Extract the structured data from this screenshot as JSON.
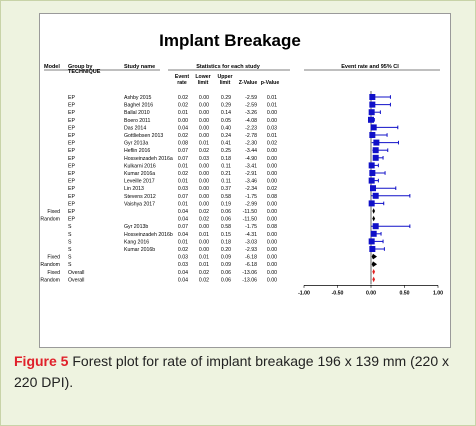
{
  "caption": {
    "figure_label": "Figure 5",
    "text": "Forest plot for rate of implant breakage 196 x 139 mm (220 x 220 DPI)."
  },
  "colors": {
    "study_marker": "#1010c8",
    "pooled_marker": "#000000",
    "overall_marker": "#e02020"
  },
  "chart_data": {
    "type": "forest",
    "title": "Implant Breakage",
    "headers": {
      "model": "Model",
      "group_by": "Group by",
      "group_by_sub": "TECHNIQUE",
      "study_name": "Study name",
      "stats_for_each_study": "Statistics for each study",
      "event_rate": [
        "Event",
        "rate"
      ],
      "lower_limit": [
        "Lower",
        "limit"
      ],
      "upper_limit": [
        "Upper",
        "limit"
      ],
      "z_value": "Z-Value",
      "p_value": "p-Value",
      "plot": "Event rate and 95% CI"
    },
    "x_ticks": [
      "-1.00",
      "-0.50",
      "0.00",
      "0.50",
      "1.00"
    ],
    "x_tick_values": [
      -1,
      -0.5,
      0,
      0.5,
      1
    ],
    "xlim": [
      -1,
      1
    ],
    "rows": [
      {
        "model": "",
        "group": "EP",
        "study": "Ashby 2015",
        "rate": "0.02",
        "lower": "0.00",
        "upper": "0.29",
        "z": "-2.59",
        "p": "0.01",
        "kind": "study",
        "r": 0.02,
        "lo": 0.0,
        "hi": 0.29
      },
      {
        "model": "",
        "group": "EP",
        "study": "Baghel 2016",
        "rate": "0.02",
        "lower": "0.00",
        "upper": "0.29",
        "z": "-2.59",
        "p": "0.01",
        "kind": "study",
        "r": 0.02,
        "lo": 0.0,
        "hi": 0.29
      },
      {
        "model": "",
        "group": "EP",
        "study": "Ballal 2010",
        "rate": "0.01",
        "lower": "0.00",
        "upper": "0.14",
        "z": "-3.26",
        "p": "0.00",
        "kind": "study",
        "r": 0.01,
        "lo": 0.0,
        "hi": 0.14
      },
      {
        "model": "",
        "group": "EP",
        "study": "Boero 2011",
        "rate": "0.00",
        "lower": "0.00",
        "upper": "0.05",
        "z": "-4.08",
        "p": "0.00",
        "kind": "study",
        "r": 0.0,
        "lo": 0.0,
        "hi": 0.05
      },
      {
        "model": "",
        "group": "EP",
        "study": "Das 2014",
        "rate": "0.04",
        "lower": "0.00",
        "upper": "0.40",
        "z": "-2.23",
        "p": "0.03",
        "kind": "study",
        "r": 0.04,
        "lo": 0.0,
        "hi": 0.4
      },
      {
        "model": "",
        "group": "EP",
        "study": "Gottliebsen 2013",
        "rate": "0.02",
        "lower": "0.00",
        "upper": "0.24",
        "z": "-2.78",
        "p": "0.01",
        "kind": "study",
        "r": 0.02,
        "lo": 0.0,
        "hi": 0.24
      },
      {
        "model": "",
        "group": "EP",
        "study": "Gyr 2013a",
        "rate": "0.08",
        "lower": "0.01",
        "upper": "0.41",
        "z": "-2.30",
        "p": "0.02",
        "kind": "study",
        "r": 0.08,
        "lo": 0.01,
        "hi": 0.41
      },
      {
        "model": "",
        "group": "EP",
        "study": "Heflin 2016",
        "rate": "0.07",
        "lower": "0.02",
        "upper": "0.25",
        "z": "-3.44",
        "p": "0.00",
        "kind": "study",
        "r": 0.07,
        "lo": 0.02,
        "hi": 0.25
      },
      {
        "model": "",
        "group": "EP",
        "study": "Hosseinzadeh 2016a",
        "rate": "0.07",
        "lower": "0.03",
        "upper": "0.18",
        "z": "-4.90",
        "p": "0.00",
        "kind": "study",
        "r": 0.07,
        "lo": 0.03,
        "hi": 0.18
      },
      {
        "model": "",
        "group": "EP",
        "study": "Kulkarni 2016",
        "rate": "0.01",
        "lower": "0.00",
        "upper": "0.11",
        "z": "-3.41",
        "p": "0.00",
        "kind": "study",
        "r": 0.01,
        "lo": 0.0,
        "hi": 0.11
      },
      {
        "model": "",
        "group": "EP",
        "study": "Kumar 2016a",
        "rate": "0.02",
        "lower": "0.00",
        "upper": "0.21",
        "z": "-2.91",
        "p": "0.00",
        "kind": "study",
        "r": 0.02,
        "lo": 0.0,
        "hi": 0.21
      },
      {
        "model": "",
        "group": "EP",
        "study": "Leveille 2017",
        "rate": "0.01",
        "lower": "0.00",
        "upper": "0.11",
        "z": "-3.46",
        "p": "0.00",
        "kind": "study",
        "r": 0.01,
        "lo": 0.0,
        "hi": 0.11
      },
      {
        "model": "",
        "group": "EP",
        "study": "Lin 2013",
        "rate": "0.03",
        "lower": "0.00",
        "upper": "0.37",
        "z": "-2.34",
        "p": "0.02",
        "kind": "study",
        "r": 0.03,
        "lo": 0.0,
        "hi": 0.37
      },
      {
        "model": "",
        "group": "EP",
        "study": "Stevens 2012",
        "rate": "0.07",
        "lower": "0.00",
        "upper": "0.58",
        "z": "-1.75",
        "p": "0.08",
        "kind": "study",
        "r": 0.07,
        "lo": 0.0,
        "hi": 0.58
      },
      {
        "model": "",
        "group": "EP",
        "study": "Vaishya 2017",
        "rate": "0.01",
        "lower": "0.00",
        "upper": "0.19",
        "z": "-2.99",
        "p": "0.00",
        "kind": "study",
        "r": 0.01,
        "lo": 0.0,
        "hi": 0.19
      },
      {
        "model": "Fixed",
        "group": "EP",
        "study": "",
        "rate": "0.04",
        "lower": "0.02",
        "upper": "0.06",
        "z": "-11.50",
        "p": "0.00",
        "kind": "pooled",
        "r": 0.04,
        "lo": 0.02,
        "hi": 0.06
      },
      {
        "model": "Random",
        "group": "EP",
        "study": "",
        "rate": "0.04",
        "lower": "0.02",
        "upper": "0.06",
        "z": "-11.50",
        "p": "0.00",
        "kind": "pooled",
        "r": 0.04,
        "lo": 0.02,
        "hi": 0.06
      },
      {
        "model": "",
        "group": "S",
        "study": "Gyr 2013b",
        "rate": "0.07",
        "lower": "0.00",
        "upper": "0.58",
        "z": "-1.75",
        "p": "0.08",
        "kind": "study",
        "r": 0.07,
        "lo": 0.0,
        "hi": 0.58
      },
      {
        "model": "",
        "group": "S",
        "study": "Hosseinzadeh 2016b",
        "rate": "0.04",
        "lower": "0.01",
        "upper": "0.15",
        "z": "-4.31",
        "p": "0.00",
        "kind": "study",
        "r": 0.04,
        "lo": 0.01,
        "hi": 0.15
      },
      {
        "model": "",
        "group": "S",
        "study": "Kang 2016",
        "rate": "0.01",
        "lower": "0.00",
        "upper": "0.18",
        "z": "-3.03",
        "p": "0.00",
        "kind": "study",
        "r": 0.01,
        "lo": 0.0,
        "hi": 0.18
      },
      {
        "model": "",
        "group": "S",
        "study": "Kumar 2016b",
        "rate": "0.02",
        "lower": "0.00",
        "upper": "0.20",
        "z": "-2.93",
        "p": "0.00",
        "kind": "study",
        "r": 0.02,
        "lo": 0.0,
        "hi": 0.2
      },
      {
        "model": "Fixed",
        "group": "S",
        "study": "",
        "rate": "0.03",
        "lower": "0.01",
        "upper": "0.09",
        "z": "-6.18",
        "p": "0.00",
        "kind": "pooled",
        "r": 0.03,
        "lo": 0.01,
        "hi": 0.09
      },
      {
        "model": "Random",
        "group": "S",
        "study": "",
        "rate": "0.03",
        "lower": "0.01",
        "upper": "0.09",
        "z": "-6.18",
        "p": "0.00",
        "kind": "pooled",
        "r": 0.03,
        "lo": 0.01,
        "hi": 0.09
      },
      {
        "model": "Fixed",
        "group": "Overall",
        "study": "",
        "rate": "0.04",
        "lower": "0.02",
        "upper": "0.06",
        "z": "-13.06",
        "p": "0.00",
        "kind": "overall",
        "r": 0.04,
        "lo": 0.02,
        "hi": 0.06
      },
      {
        "model": "Random",
        "group": "Overall",
        "study": "",
        "rate": "0.04",
        "lower": "0.02",
        "upper": "0.06",
        "z": "-13.06",
        "p": "0.00",
        "kind": "overall",
        "r": 0.04,
        "lo": 0.02,
        "hi": 0.06
      }
    ]
  }
}
